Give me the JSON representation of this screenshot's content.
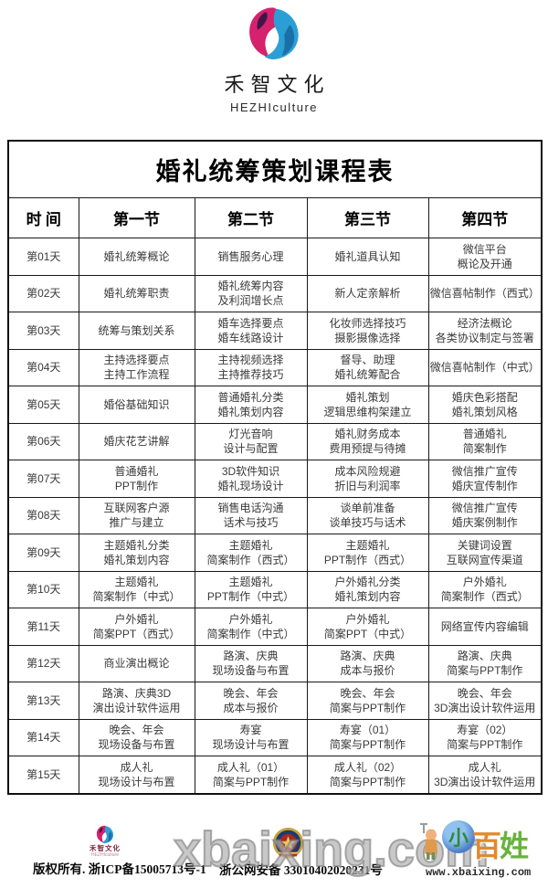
{
  "brand": {
    "name_cn": "禾智文化",
    "name_en": "HEZHIculture"
  },
  "logo_colors": {
    "magenta": "#d6216e",
    "dark_purple": "#3f1747",
    "blue": "#2b9fd4",
    "dark_blue": "#1b6fa8"
  },
  "table": {
    "title": "婚礼统筹策划课程表",
    "headers": [
      "时 间",
      "第一节",
      "第二节",
      "第三节",
      "第四节"
    ],
    "rows": [
      {
        "day": "第01天",
        "cells": [
          "婚礼统筹概论",
          "销售服务心理",
          "婚礼道具认知",
          "微信平台\n概论及开通"
        ]
      },
      {
        "day": "第02天",
        "cells": [
          "婚礼统筹职责",
          "婚礼统筹内容\n及利润增长点",
          "新人定亲解析",
          "微信喜帖制作（西式）"
        ]
      },
      {
        "day": "第03天",
        "cells": [
          "统筹与策划关系",
          "婚车选择要点\n婚车线路设计",
          "化妆师选择技巧\n摄影摄像选择",
          "经济法概论\n各类协议制定与签署"
        ]
      },
      {
        "day": "第04天",
        "cells": [
          "主持选择要点\n主持工作流程",
          "主持视频选择\n主持推荐技巧",
          "督导、助理\n婚礼统筹配合",
          "微信喜帖制作（中式）"
        ]
      },
      {
        "day": "第05天",
        "cells": [
          "婚俗基础知识",
          "普通婚礼分类\n婚礼策划内容",
          "婚礼策划\n逻辑思维构架建立",
          "婚庆色彩搭配\n婚礼策划风格"
        ]
      },
      {
        "day": "第06天",
        "cells": [
          "婚庆花艺讲解",
          "灯光音响\n设计与配置",
          "婚礼财务成本\n费用预提与待摊",
          "普通婚礼\n简案制作"
        ]
      },
      {
        "day": "第07天",
        "cells": [
          "普通婚礼\nPPT制作",
          "3D软件知识\n婚礼现场设计",
          "成本风险规避\n折旧与利润率",
          "微信推广宣传\n婚庆宣传制作"
        ]
      },
      {
        "day": "第08天",
        "cells": [
          "互联网客户源\n推广与建立",
          "销售电话沟通\n话术与技巧",
          "谈单前准备\n谈单技巧与话术",
          "微信推广宣传\n婚庆案例制作"
        ]
      },
      {
        "day": "第09天",
        "cells": [
          "主题婚礼分类\n婚礼策划内容",
          "主题婚礼\n简案制作（西式）",
          "主题婚礼\nPPT制作（西式）",
          "关键词设置\n互联网宣传渠道"
        ]
      },
      {
        "day": "第10天",
        "cells": [
          "主题婚礼\n简案制作（中式）",
          "主题婚礼\nPPT制作（中式）",
          "户外婚礼分类\n婚礼策划内容",
          "户外婚礼\n简案制作（西式）"
        ]
      },
      {
        "day": "第11天",
        "cells": [
          "户外婚礼\n简案PPT（西式）",
          "户外婚礼\n简案制作（中式）",
          "户外婚礼\n简案PPT（中式）",
          "网络宣传内容编辑"
        ]
      },
      {
        "day": "第12天",
        "cells": [
          "商业演出概论",
          "路演、庆典\n现场设备与布置",
          "路演、庆典\n成本与报价",
          "路演、庆典\n简案与PPT制作"
        ]
      },
      {
        "day": "第13天",
        "cells": [
          "路演、庆典3D\n演出设计软件运用",
          "晚会、年会\n成本与报价",
          "晚会、年会\n简案与PPT制作",
          "晚会、年会\n3D演出设计软件运用"
        ]
      },
      {
        "day": "第14天",
        "cells": [
          "晚会、年会\n现场设备与布置",
          "寿宴\n现场设计与布置",
          "寿宴（01）\n简案与PPT制作",
          "寿宴（02）\n简案与PPT制作"
        ]
      },
      {
        "day": "第15天",
        "cells": [
          "成人礼\n现场设计与布置",
          "成人礼（01）\n简案与PPT制作",
          "成人礼（02）\n简案与PPT制作",
          "成人礼\n3D演出设计软件运用"
        ]
      }
    ]
  },
  "footer": {
    "mini_brand_cn": "禾智文化",
    "mini_brand_en": "HEZHIculture",
    "copyright": "版权所有. 浙ICP备15005713号-1",
    "security_record": "浙公网安备 33010402020231号",
    "watermark_text": "xbaixing.com",
    "watermark_url": "www.xbaixing.com",
    "watermark_logo": {
      "char_small": "小",
      "char_bai": "百",
      "char_xing": "姓"
    }
  }
}
